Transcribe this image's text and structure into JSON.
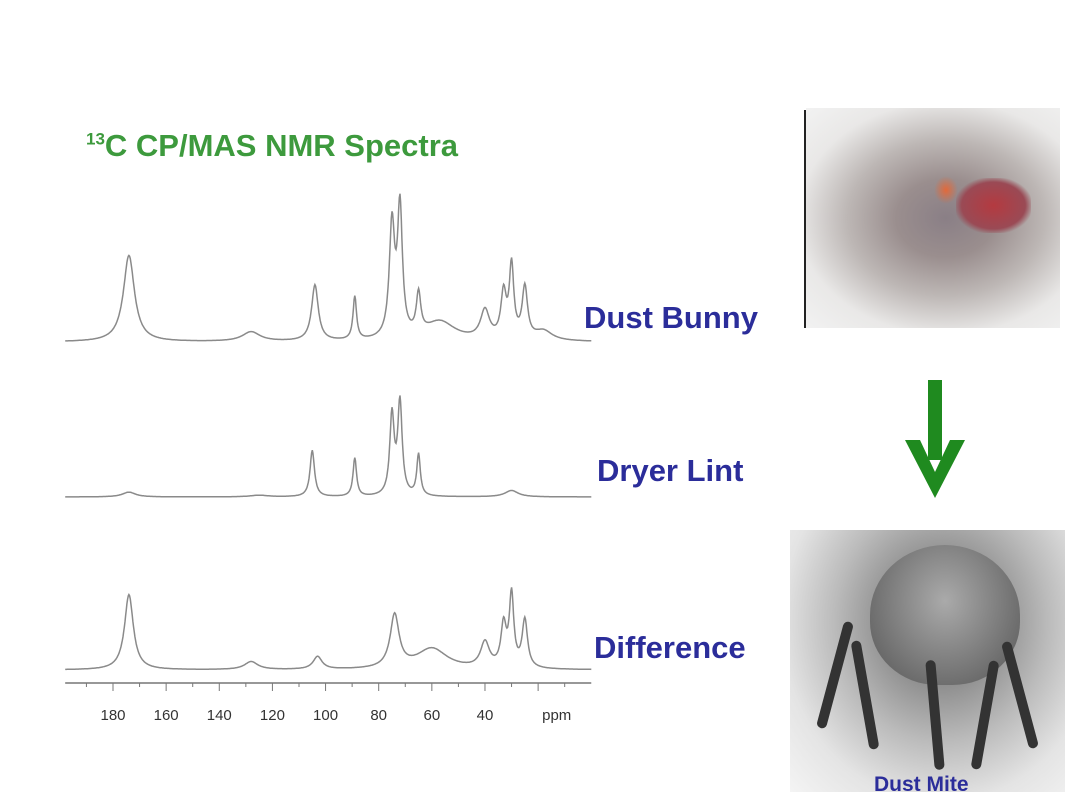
{
  "title_sup": "13",
  "title_main": "C CP/MAS NMR Spectra",
  "labels": {
    "bunny": "Dust Bunny",
    "lint": "Dryer Lint",
    "diff": "Difference",
    "mite": "Dust Mite"
  },
  "colors": {
    "title": "#3d9a3d",
    "labels": "#2b2d9a",
    "trace": "#8a8a8a",
    "arrow": "#1f8a1f"
  },
  "icons": {
    "arrow": "arrow-down-icon"
  },
  "chart_data": {
    "type": "line",
    "title": "13C CP/MAS NMR Spectra",
    "xlabel": "ppm",
    "xlim": [
      198,
      0
    ],
    "x_reversed": true,
    "xticks": [
      180,
      160,
      140,
      120,
      100,
      80,
      60,
      40
    ],
    "xtick_labels": [
      "180",
      "160",
      "140",
      "120",
      "100",
      "80",
      "60",
      "40"
    ],
    "grid": false,
    "series": [
      {
        "name": "Dust Bunny",
        "peaks": [
          {
            "ppm": 174,
            "intensity": 0.54,
            "width": 2.5
          },
          {
            "ppm": 128,
            "intensity": 0.06,
            "width": 4
          },
          {
            "ppm": 104,
            "intensity": 0.35,
            "width": 1.5
          },
          {
            "ppm": 89,
            "intensity": 0.27,
            "width": 0.8
          },
          {
            "ppm": 75,
            "intensity": 0.7,
            "width": 1.2
          },
          {
            "ppm": 72,
            "intensity": 0.8,
            "width": 1.1
          },
          {
            "ppm": 65,
            "intensity": 0.25,
            "width": 1
          },
          {
            "ppm": 57,
            "intensity": 0.12,
            "width": 7
          },
          {
            "ppm": 40,
            "intensity": 0.18,
            "width": 2
          },
          {
            "ppm": 33,
            "intensity": 0.28,
            "width": 1.2
          },
          {
            "ppm": 30,
            "intensity": 0.45,
            "width": 1
          },
          {
            "ppm": 25,
            "intensity": 0.32,
            "width": 1.2
          },
          {
            "ppm": 18,
            "intensity": 0.06,
            "width": 4
          }
        ]
      },
      {
        "name": "Dryer Lint",
        "peaks": [
          {
            "ppm": 174,
            "intensity": 0.03,
            "width": 3
          },
          {
            "ppm": 125,
            "intensity": 0.01,
            "width": 4
          },
          {
            "ppm": 105,
            "intensity": 0.29,
            "width": 1
          },
          {
            "ppm": 89,
            "intensity": 0.24,
            "width": 0.8
          },
          {
            "ppm": 75,
            "intensity": 0.5,
            "width": 1
          },
          {
            "ppm": 72,
            "intensity": 0.58,
            "width": 1
          },
          {
            "ppm": 65,
            "intensity": 0.26,
            "width": 0.8
          },
          {
            "ppm": 30,
            "intensity": 0.04,
            "width": 3
          }
        ]
      },
      {
        "name": "Difference",
        "peaks": [
          {
            "ppm": 174,
            "intensity": 0.47,
            "width": 2
          },
          {
            "ppm": 128,
            "intensity": 0.05,
            "width": 3
          },
          {
            "ppm": 103,
            "intensity": 0.08,
            "width": 2
          },
          {
            "ppm": 74,
            "intensity": 0.33,
            "width": 2
          },
          {
            "ppm": 60,
            "intensity": 0.13,
            "width": 7
          },
          {
            "ppm": 40,
            "intensity": 0.16,
            "width": 2
          },
          {
            "ppm": 33,
            "intensity": 0.26,
            "width": 1.2
          },
          {
            "ppm": 30,
            "intensity": 0.45,
            "width": 1
          },
          {
            "ppm": 25,
            "intensity": 0.3,
            "width": 1.2
          }
        ]
      }
    ]
  }
}
